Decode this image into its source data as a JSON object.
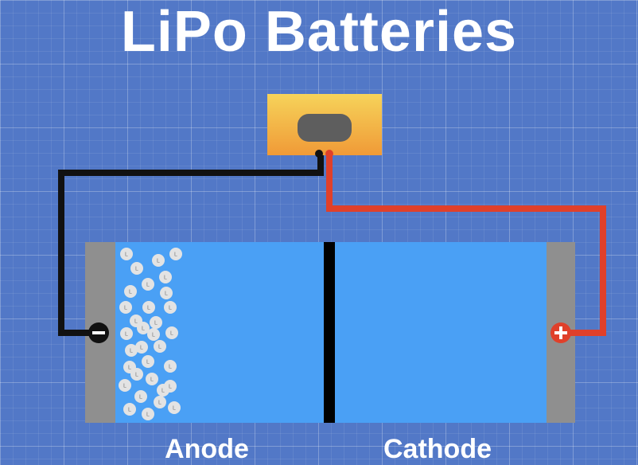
{
  "title": "LiPo Batteries",
  "labels": {
    "anode": "Anode",
    "cathode": "Cathode"
  },
  "terminals": {
    "negative_icon": "minus-icon",
    "positive_icon": "plus-icon"
  },
  "ion": {
    "letter": "L",
    "count": 33
  },
  "colors": {
    "background": "#5278c7",
    "electrolyte": "#4aa0f5",
    "collector": "#8f8f8f",
    "negative_wire": "#111111",
    "positive_wire": "#e0402a",
    "separator": "#000000",
    "load_top": "#f6d35a",
    "load_bottom": "#f09a37",
    "ion": "#e3e3e3"
  }
}
